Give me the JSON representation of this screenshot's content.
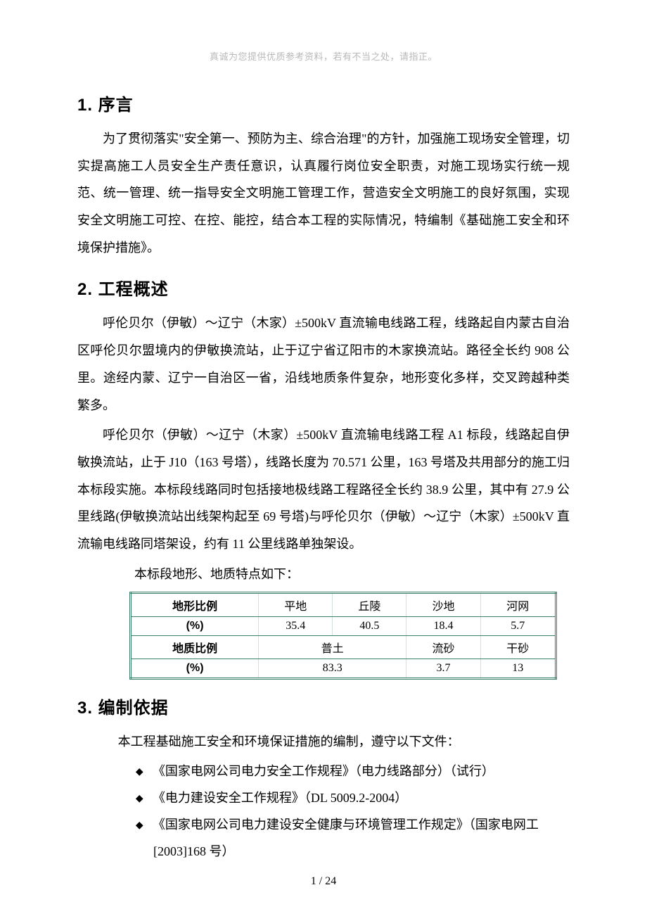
{
  "header_note": "真诚为您提供优质参考资料，若有不当之处，请指正。",
  "sections": {
    "s1": {
      "title": "1. 序言",
      "p1": "为了贯彻落实\"安全第一、预防为主、综合治理\"的方针，加强施工现场安全管理，切实提高施工人员安全生产责任意识，认真履行岗位安全职责，对施工现场实行统一规范、统一管理、统一指导安全文明施工管理工作，营造安全文明施工的良好氛围，实现安全文明施工可控、在控、能控，结合本工程的实际情况，特编制《基础施工安全和环境保护措施》。"
    },
    "s2": {
      "title": "2. 工程概述",
      "p1": "呼伦贝尔（伊敏）～辽宁（木家）±500kV 直流输电线路工程，线路起自内蒙古自治区呼伦贝尔盟境内的伊敏换流站，止于辽宁省辽阳市的木家换流站。路径全长约 908 公里。途经内蒙、辽宁一自治区一省，沿线地质条件复杂，地形变化多样，交叉跨越种类繁多。",
      "p2": "呼伦贝尔（伊敏）～辽宁（木家）±500kV 直流输电线路工程 A1 标段，线路起自伊敏换流站，止于 J10（163 号塔），线路长度为 70.571 公里，163 号塔及共用部分的施工归本标段实施。本标段线路同时包括接地极线路工程路径全长约 38.9 公里，其中有 27.9 公里线路(伊敏换流站出线架构起至 69 号塔)与呼伦贝尔（伊敏）～辽宁（木家）±500kV 直流输电线路同塔架设，约有 11 公里线路单独架设。",
      "table_intro": "本标段地形、地质特点如下："
    },
    "s3": {
      "title": "3. 编制依据",
      "intro": "本工程基础施工安全和环境保证措施的编制，遵守以下文件：",
      "items": [
        "《国家电网公司电力安全工作规程》（电力线路部分）（试行）",
        "《电力建设安全工作规程》（DL 5009.2-2004）",
        "《国家电网公司电力建设安全健康与环境管理工作规定》（国家电网工",
        "[2003]168 号）"
      ]
    }
  },
  "table": {
    "border_color": "#3a7f68",
    "cell_border_color": "#cfe3dc",
    "row1_head": "地形比例",
    "row1_cells": [
      "平地",
      "丘陵",
      "沙地",
      "河网"
    ],
    "row2_head": "(%)",
    "row2_cells": [
      "35.4",
      "40.5",
      "18.4",
      "5.7"
    ],
    "row3_head": "地质比例",
    "row3_cells": [
      "普土",
      "流砂",
      "干砂"
    ],
    "row4_head": "(%)",
    "row4_cells": [
      "83.3",
      "3.7",
      "13"
    ]
  },
  "page_number": "1  /  24"
}
